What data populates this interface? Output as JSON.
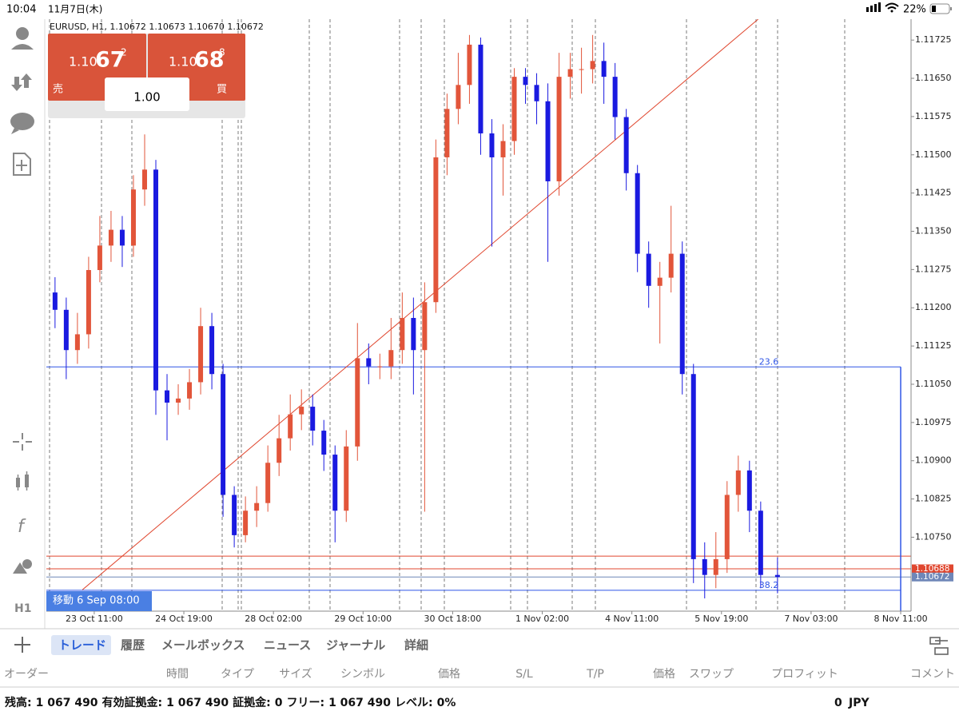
{
  "status_bar": {
    "time": "10:04",
    "date": "11月7日(木)",
    "battery": "22%"
  },
  "order_panel": {
    "sell": {
      "label": "売",
      "price_prefix": "1.10",
      "price_big": "67",
      "price_small": "2"
    },
    "buy": {
      "label": "買",
      "price_prefix": "1.10",
      "price_big": "68",
      "price_small": "8"
    },
    "volume": "1.00"
  },
  "sidebar": {
    "timeframe": "H1"
  },
  "chart_data": {
    "type": "candlestick",
    "title": "EURUSD, H1, 1.10672 1.10673 1.10670 1.10672",
    "up_color": "#e2553a",
    "down_color": "#1a1ae0",
    "x": [
      -14,
      -10,
      -6,
      -2,
      2,
      6,
      10,
      14,
      18,
      22,
      26,
      30,
      34,
      38,
      42,
      46,
      50,
      54,
      58,
      62,
      66,
      70,
      74,
      78,
      82,
      86,
      90,
      94,
      98,
      102,
      106,
      110,
      114,
      118,
      122,
      126,
      130,
      134,
      138,
      142,
      146,
      150,
      154,
      158,
      162,
      166,
      170,
      174,
      178,
      182,
      186,
      190,
      194,
      198,
      202,
      206,
      210,
      214,
      218,
      222,
      226,
      230,
      234,
      238,
      244
    ],
    "open": [
      1.1123,
      1.11196,
      1.11117,
      1.11148,
      1.11274,
      1.11322,
      1.11353,
      1.11322,
      1.11432,
      1.11471,
      1.11038,
      1.11014,
      1.11022,
      1.11054,
      1.11164,
      1.1107,
      1.10833,
      1.10754,
      1.10802,
      1.10817,
      1.10896,
      1.10944,
      1.10991,
      1.11006,
      1.10959,
      1.10912,
      1.10802,
      1.10928,
      1.11101,
      1.11085,
      1.11085,
      1.11117,
      1.1118,
      1.11117,
      1.11211,
      1.11495,
      1.1159,
      1.11637,
      1.11716,
      1.11542,
      1.11495,
      1.11527,
      1.11653,
      1.11637,
      1.11605,
      1.11448,
      1.11653,
      1.11668,
      1.11668,
      1.11684,
      1.11653,
      1.11574,
      1.11464,
      1.11306,
      1.11243,
      1.11259,
      1.11306,
      1.1107,
      1.10707,
      1.10676,
      1.10707,
      1.10833,
      1.10881,
      1.10802,
      1.10676
    ],
    "high": [
      1.1126,
      1.1122,
      1.1119,
      1.113,
      1.1138,
      1.1139,
      1.1138,
      1.1146,
      1.1154,
      1.1149,
      1.1107,
      1.1105,
      1.1108,
      1.112,
      1.1119,
      1.1109,
      1.1085,
      1.1083,
      1.1085,
      1.1093,
      1.1099,
      1.1103,
      1.1104,
      1.1103,
      1.1098,
      1.1093,
      1.1096,
      1.1117,
      1.1113,
      1.1111,
      1.1118,
      1.1123,
      1.1122,
      1.1125,
      1.1153,
      1.1162,
      1.117,
      1.11735,
      1.1173,
      1.1157,
      1.1156,
      1.1167,
      1.1167,
      1.1166,
      1.1164,
      1.117,
      1.117,
      1.1171,
      1.11735,
      1.1172,
      1.1168,
      1.1159,
      1.1148,
      1.1133,
      1.1129,
      1.114,
      1.1133,
      1.1109,
      1.1074,
      1.1076,
      1.1086,
      1.1091,
      1.109,
      1.1082,
      1.1071
    ],
    "low": [
      1.1116,
      1.1106,
      1.1109,
      1.1112,
      1.1125,
      1.1129,
      1.1128,
      1.113,
      1.114,
      1.1099,
      1.1094,
      1.1099,
      1.11,
      1.1103,
      1.1104,
      1.1079,
      1.1073,
      1.1074,
      1.1077,
      1.108,
      1.1087,
      1.1092,
      1.1096,
      1.1093,
      1.1088,
      1.1074,
      1.1078,
      1.109,
      1.1105,
      1.1106,
      1.1106,
      1.1109,
      1.1103,
      1.108,
      1.1119,
      1.1146,
      1.1156,
      1.116,
      1.115,
      1.1132,
      1.1142,
      1.115,
      1.116,
      1.1156,
      1.1129,
      1.1142,
      1.1161,
      1.1162,
      1.1164,
      1.116,
      1.1153,
      1.1143,
      1.1127,
      1.112,
      1.1113,
      1.1123,
      1.1103,
      1.1066,
      1.1063,
      1.1065,
      1.1068,
      1.108,
      1.1076,
      1.1065,
      1.1064
    ],
    "close": [
      1.11196,
      1.11117,
      1.11148,
      1.11274,
      1.11322,
      1.11353,
      1.11322,
      1.11432,
      1.11471,
      1.11038,
      1.11014,
      1.11022,
      1.11054,
      1.11164,
      1.1107,
      1.10833,
      1.10754,
      1.10802,
      1.10817,
      1.10896,
      1.10944,
      1.10991,
      1.11006,
      1.10959,
      1.10912,
      1.10802,
      1.10928,
      1.11101,
      1.11085,
      1.11085,
      1.11117,
      1.1118,
      1.11117,
      1.11211,
      1.11495,
      1.1159,
      1.11637,
      1.11716,
      1.11542,
      1.11495,
      1.11527,
      1.11653,
      1.11637,
      1.11605,
      1.11448,
      1.11653,
      1.11668,
      1.11668,
      1.11684,
      1.11653,
      1.11574,
      1.11464,
      1.11306,
      1.11243,
      1.11259,
      1.11306,
      1.1107,
      1.10707,
      1.10676,
      1.10707,
      1.10833,
      1.10881,
      1.10802,
      1.10676,
      1.10672
    ],
    "xlim": [
      -17.1,
      291.7
    ],
    "xticks": [
      {
        "value": 0,
        "label": "23 Oct 11:00"
      },
      {
        "value": 32,
        "label": "24 Oct 19:00"
      },
      {
        "value": 64,
        "label": "28 Oct 02:00"
      },
      {
        "value": 96,
        "label": "29 Oct 10:00"
      },
      {
        "value": 128,
        "label": "30 Oct 18:00"
      },
      {
        "value": 160,
        "label": "1 Nov 02:00"
      },
      {
        "value": 192,
        "label": "4 Nov 11:00"
      },
      {
        "value": 224,
        "label": "5 Nov 19:00"
      },
      {
        "value": 256,
        "label": "7 Nov 03:00"
      },
      {
        "value": 288,
        "label": "8 Nov 11:00"
      }
    ],
    "ylim": [
      1.10605,
      1.11766
    ],
    "yticks": [
      1.11725,
      {
        "value": 1.1165,
        "label": "1.11650"
      },
      1.11575,
      {
        "value": 1.115,
        "label": "1.11500"
      },
      1.11425,
      {
        "value": 1.1135,
        "label": "1.11350"
      },
      1.11275,
      {
        "value": 1.112,
        "label": "1.11200"
      },
      1.11125,
      {
        "value": 1.1105,
        "label": "1.11050"
      },
      1.10975,
      {
        "value": 1.109,
        "label": "1.10900"
      },
      1.10825,
      {
        "value": 1.1075,
        "label": "1.10750"
      }
    ],
    "grid": false,
    "trendline": {
      "x": [
        -4.2,
        237.1
      ],
      "y": [
        1.10647,
        1.11766
      ],
      "color": "#e0472f"
    },
    "level": {
      "value": 1.10713,
      "color": "#e0472f"
    },
    "fibonacci": {
      "color": "#2f55e6",
      "x_end": 288,
      "levels": [
        {
          "value": 1.11084,
          "label": "23.6"
        },
        {
          "value": 1.10646,
          "label": "38.2"
        }
      ]
    },
    "ask": {
      "value": 1.10688,
      "color": "#e0472f"
    },
    "bid": {
      "value": 1.10672,
      "color": "#6f87b8"
    },
    "cursor_label": "移動 6 Sep 08:00"
  },
  "toolbar": {
    "tabs": [
      "トレード",
      "履歴",
      "メールボックス",
      "ニュース",
      "ジャーナル",
      "詳細"
    ]
  },
  "table": {
    "columns": [
      "オーダー",
      "時間",
      "タイプ",
      "サイズ",
      "シンボル",
      "価格",
      "S/L",
      "T/P",
      "価格",
      "スワップ",
      "プロフィット",
      "コメント"
    ]
  },
  "account": {
    "items": [
      {
        "label": "残高:",
        "value": "1 067 490"
      },
      {
        "label": "有効証拠金:",
        "value": "1 067 490"
      },
      {
        "label": "証拠金:",
        "value": "0"
      },
      {
        "label": "フリー:",
        "value": "1 067 490"
      },
      {
        "label": "レベル:",
        "value": "0%"
      }
    ],
    "profit": "0",
    "currency": "JPY"
  }
}
